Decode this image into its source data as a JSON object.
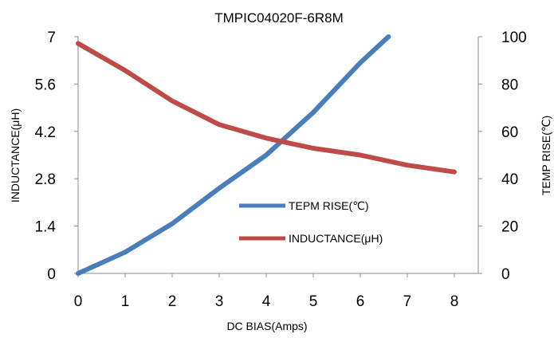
{
  "chart_data": {
    "type": "line",
    "title": "TMPIC04020F-6R8M",
    "xlabel": "DC  BIAS(Amps)",
    "ylabel_left": "INDUCTANCE(μH)",
    "ylabel_right": "TEMP RISE(℃)",
    "x_ticks": [
      "0",
      "1",
      "2",
      "3",
      "4",
      "5",
      "6",
      "7",
      "8"
    ],
    "y_left_ticks": [
      "0",
      "1.4",
      "2.8",
      "4.2",
      "5.6",
      "7"
    ],
    "y_right_ticks": [
      "0",
      "20",
      "40",
      "60",
      "80",
      "100"
    ],
    "xlim": [
      0,
      8
    ],
    "ylim_left": [
      0,
      7
    ],
    "ylim_right": [
      0,
      100
    ],
    "grid": false,
    "legend_position": "center-right",
    "series": [
      {
        "name": "TEPM RISE(℃)",
        "axis": "right",
        "color": "#4a7ebb",
        "x": [
          0,
          1,
          2,
          3,
          4,
          5,
          6,
          6.6
        ],
        "y": [
          0,
          9,
          21,
          36,
          50,
          68,
          89,
          100
        ]
      },
      {
        "name": "INDUCTANCE(μH)",
        "axis": "left",
        "color": "#be4b48",
        "x": [
          0,
          1,
          2,
          3,
          4,
          5,
          6,
          7,
          8
        ],
        "y": [
          6.8,
          6.0,
          5.1,
          4.4,
          4.0,
          3.7,
          3.5,
          3.2,
          3.0
        ]
      }
    ]
  }
}
